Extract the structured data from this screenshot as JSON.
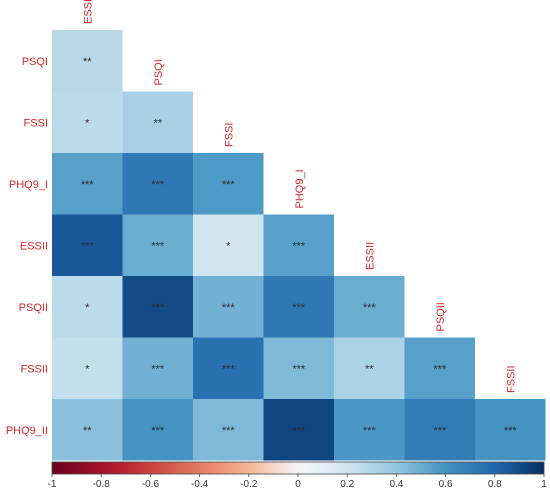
{
  "chart_data": {
    "type": "heatmap",
    "variables": [
      "ESSI",
      "PSQI",
      "FSSI",
      "PHQ9_I",
      "ESSII",
      "PSQII",
      "FSSII",
      "PHQ9_II"
    ],
    "cells": [
      {
        "row": "PSQI",
        "col": "ESSI",
        "value": 0.28,
        "sig": "**"
      },
      {
        "row": "FSSI",
        "col": "ESSI",
        "value": 0.27,
        "sig": "*"
      },
      {
        "row": "FSSI",
        "col": "PSQI",
        "value": 0.33,
        "sig": "**"
      },
      {
        "row": "PHQ9_I",
        "col": "ESSI",
        "value": 0.55,
        "sig": "***"
      },
      {
        "row": "PHQ9_I",
        "col": "PSQI",
        "value": 0.72,
        "sig": "***"
      },
      {
        "row": "PHQ9_I",
        "col": "FSSI",
        "value": 0.57,
        "sig": "***"
      },
      {
        "row": "ESSII",
        "col": "ESSI",
        "value": 0.85,
        "sig": "***"
      },
      {
        "row": "ESSII",
        "col": "PSQI",
        "value": 0.5,
        "sig": "***"
      },
      {
        "row": "ESSII",
        "col": "FSSI",
        "value": 0.2,
        "sig": "*"
      },
      {
        "row": "ESSII",
        "col": "PHQ9_I",
        "value": 0.55,
        "sig": "***"
      },
      {
        "row": "PSQII",
        "col": "ESSI",
        "value": 0.26,
        "sig": "*"
      },
      {
        "row": "PSQII",
        "col": "PSQI",
        "value": 0.9,
        "sig": "***"
      },
      {
        "row": "PSQII",
        "col": "FSSI",
        "value": 0.48,
        "sig": "***"
      },
      {
        "row": "PSQII",
        "col": "PHQ9_I",
        "value": 0.72,
        "sig": "***"
      },
      {
        "row": "PSQII",
        "col": "ESSII",
        "value": 0.5,
        "sig": "***"
      },
      {
        "row": "FSSII",
        "col": "ESSI",
        "value": 0.24,
        "sig": "*"
      },
      {
        "row": "FSSII",
        "col": "PSQI",
        "value": 0.48,
        "sig": "***"
      },
      {
        "row": "FSSII",
        "col": "FSSI",
        "value": 0.75,
        "sig": "***"
      },
      {
        "row": "FSSII",
        "col": "PHQ9_I",
        "value": 0.45,
        "sig": "***"
      },
      {
        "row": "FSSII",
        "col": "ESSII",
        "value": 0.32,
        "sig": "**"
      },
      {
        "row": "FSSII",
        "col": "PSQII",
        "value": 0.55,
        "sig": "***"
      },
      {
        "row": "PHQ9_II",
        "col": "ESSI",
        "value": 0.42,
        "sig": "**"
      },
      {
        "row": "PHQ9_II",
        "col": "PSQI",
        "value": 0.6,
        "sig": "***"
      },
      {
        "row": "PHQ9_II",
        "col": "FSSI",
        "value": 0.45,
        "sig": "***"
      },
      {
        "row": "PHQ9_II",
        "col": "PHQ9_I",
        "value": 0.92,
        "sig": "***"
      },
      {
        "row": "PHQ9_II",
        "col": "ESSII",
        "value": 0.58,
        "sig": "***"
      },
      {
        "row": "PHQ9_II",
        "col": "PSQII",
        "value": 0.7,
        "sig": "***"
      },
      {
        "row": "PHQ9_II",
        "col": "FSSII",
        "value": 0.6,
        "sig": "***"
      }
    ],
    "colorbar": {
      "range": [
        -1,
        1
      ],
      "ticks": [
        "-1",
        "-0.8",
        "-0.6",
        "-0.4",
        "-0.2",
        "0",
        "0.2",
        "0.4",
        "0.6",
        "0.8",
        "1"
      ]
    },
    "colors": {
      "neg": "#67001f",
      "mid": "#f7f7f7",
      "pos": "#053061",
      "label": "#d62728"
    }
  }
}
